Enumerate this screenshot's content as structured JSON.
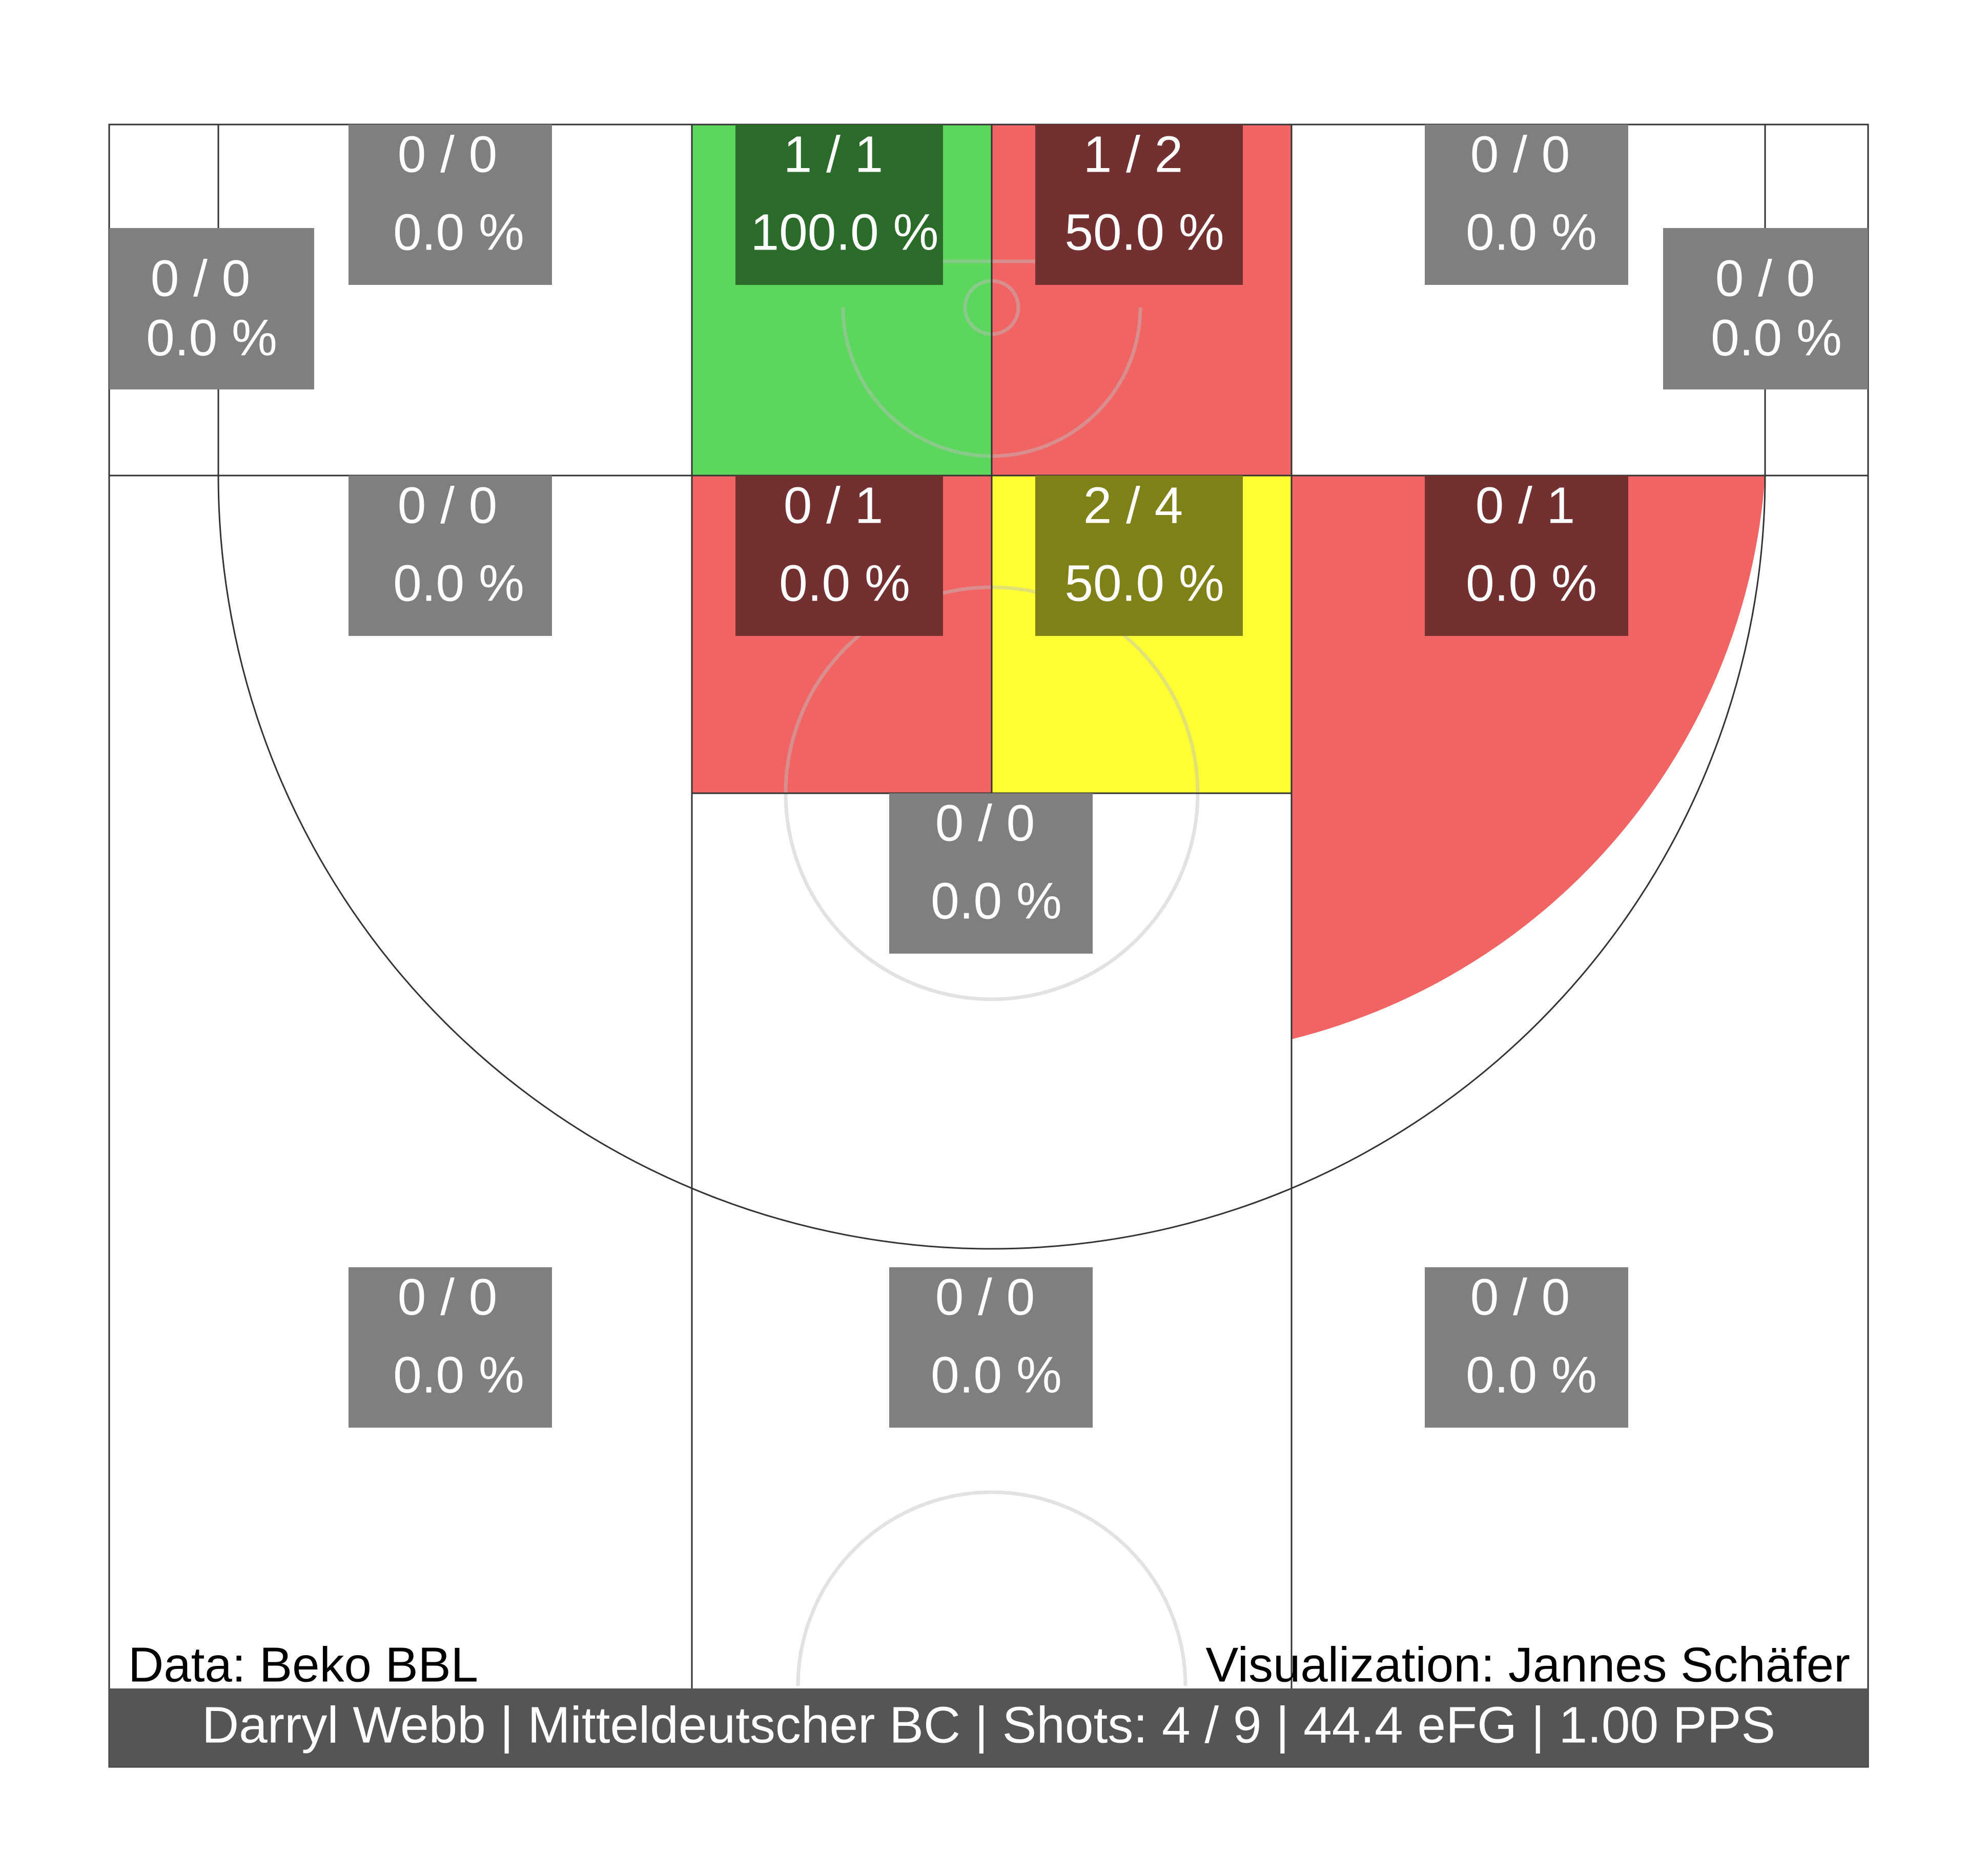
{
  "chart_data": {
    "type": "heatmap",
    "description_units": "made / attempted shots and field-goal percentage per court zone",
    "colors": {
      "hot": "#5cd65c",
      "average": "#ffff33",
      "cold": "#f06464",
      "empty": "#ffffff",
      "label_box_neutral": "#7f7f7f",
      "footer": "#555555"
    },
    "zones": [
      {
        "id": "corner-left",
        "made": 0,
        "att": 0,
        "shots": "0 / 0",
        "pct": "0.0 %",
        "heat": "empty"
      },
      {
        "id": "short-left",
        "made": 0,
        "att": 0,
        "shots": "0 / 0",
        "pct": "0.0 %",
        "heat": "empty"
      },
      {
        "id": "paint-left",
        "made": 1,
        "att": 1,
        "shots": "1 / 1",
        "pct": "100.0 %",
        "heat": "hot"
      },
      {
        "id": "paint-right",
        "made": 1,
        "att": 2,
        "shots": "1 / 2",
        "pct": "50.0 %",
        "heat": "cold"
      },
      {
        "id": "short-right",
        "made": 0,
        "att": 0,
        "shots": "0 / 0",
        "pct": "0.0 %",
        "heat": "empty"
      },
      {
        "id": "corner-right",
        "made": 0,
        "att": 0,
        "shots": "0 / 0",
        "pct": "0.0 %",
        "heat": "empty"
      },
      {
        "id": "mid-left",
        "made": 0,
        "att": 0,
        "shots": "0 / 0",
        "pct": "0.0 %",
        "heat": "empty"
      },
      {
        "id": "elbow-left",
        "made": 0,
        "att": 1,
        "shots": "0 / 1",
        "pct": "0.0 %",
        "heat": "cold"
      },
      {
        "id": "elbow-right",
        "made": 2,
        "att": 4,
        "shots": "2 / 4",
        "pct": "50.0 %",
        "heat": "average"
      },
      {
        "id": "mid-right",
        "made": 0,
        "att": 1,
        "shots": "0 / 1",
        "pct": "0.0 %",
        "heat": "cold"
      },
      {
        "id": "top-key",
        "made": 0,
        "att": 0,
        "shots": "0 / 0",
        "pct": "0.0 %",
        "heat": "empty"
      },
      {
        "id": "three-left",
        "made": 0,
        "att": 0,
        "shots": "0 / 0",
        "pct": "0.0 %",
        "heat": "empty"
      },
      {
        "id": "three-center",
        "made": 0,
        "att": 0,
        "shots": "0 / 0",
        "pct": "0.0 %",
        "heat": "empty"
      },
      {
        "id": "three-right",
        "made": 0,
        "att": 0,
        "shots": "0 / 0",
        "pct": "0.0 %",
        "heat": "empty"
      }
    ]
  },
  "credits": {
    "data": "Data: Beko BBL",
    "visualization": "Visualization: Jannes Schäfer"
  },
  "footer": "Darryl Webb | Mitteldeutscher BC | Shots: 4 / 9 | 44.4 eFG | 1.00 PPS"
}
